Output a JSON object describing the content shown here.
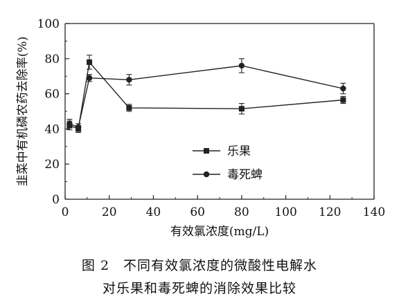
{
  "chart_data": {
    "type": "line",
    "xlabel": "有效氯浓度(mg/L)",
    "ylabel": "韭菜中有机磷农药去除率(%)",
    "xlim": [
      0,
      140
    ],
    "ylim": [
      0,
      100
    ],
    "xticks": [
      0,
      20,
      40,
      60,
      80,
      100,
      120,
      140
    ],
    "yticks": [
      0,
      20,
      40,
      60,
      80,
      100
    ],
    "legend_position": "lower-right",
    "grid": false,
    "series": [
      {
        "name": "乐果",
        "marker": "square",
        "color": "#222222",
        "points": [
          {
            "x": 2,
            "y": 42,
            "err": 2.5
          },
          {
            "x": 6,
            "y": 40,
            "err": 2.0
          },
          {
            "x": 11,
            "y": 78,
            "err": 4.0
          },
          {
            "x": 29,
            "y": 52,
            "err": 2.0
          },
          {
            "x": 80,
            "y": 51.5,
            "err": 3.0
          },
          {
            "x": 126,
            "y": 56.5,
            "err": 2.0
          }
        ]
      },
      {
        "name": "毒死蜱",
        "marker": "circle",
        "color": "#222222",
        "points": [
          {
            "x": 2,
            "y": 43,
            "err": 2.5
          },
          {
            "x": 6,
            "y": 41,
            "err": 2.0
          },
          {
            "x": 11,
            "y": 69,
            "err": 2.0
          },
          {
            "x": 29,
            "y": 68,
            "err": 3.0
          },
          {
            "x": 80,
            "y": 76,
            "err": 4.0
          },
          {
            "x": 126,
            "y": 63,
            "err": 3.0
          }
        ]
      }
    ]
  },
  "caption": {
    "line1": "图 2　不同有效氯浓度的微酸性电解水",
    "line2": "对乐果和毒死蜱的消除效果比较"
  }
}
